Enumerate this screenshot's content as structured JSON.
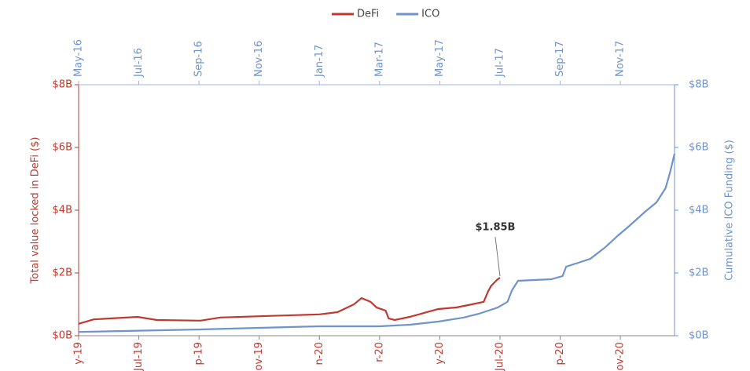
{
  "chart_data": {
    "type": "line",
    "ylabel": "Total value locked in DeFi ($)",
    "y2label": "Cumulative ICO Funding ($)",
    "xlim": [
      0,
      19.8
    ],
    "xticks": [
      {
        "value": 0,
        "label": "y-19"
      },
      {
        "value": 2,
        "label": "Jul-19"
      },
      {
        "value": 4,
        "label": "p-19"
      },
      {
        "value": 6,
        "label": "ov-19"
      },
      {
        "value": 8,
        "label": "n-20"
      },
      {
        "value": 10,
        "label": "r-20"
      },
      {
        "value": 12,
        "label": "y-20"
      },
      {
        "value": 14,
        "label": "Jul-20"
      },
      {
        "value": 16,
        "label": "p-20"
      },
      {
        "value": 18,
        "label": "ov-20"
      }
    ],
    "x2lim": [
      0,
      19.8
    ],
    "x2ticks": [
      {
        "value": 0,
        "label": "May-16"
      },
      {
        "value": 2,
        "label": "Jul-16"
      },
      {
        "value": 4,
        "label": "Sep-16"
      },
      {
        "value": 6,
        "label": "Nov-16"
      },
      {
        "value": 8,
        "label": "Jan-17"
      },
      {
        "value": 10,
        "label": "Mar-17"
      },
      {
        "value": 12,
        "label": "May-17"
      },
      {
        "value": 14,
        "label": "Jul-17"
      },
      {
        "value": 16,
        "label": "Sep-17"
      },
      {
        "value": 18,
        "label": "Nov-17"
      }
    ],
    "ylim": [
      0,
      8
    ],
    "yticks": [
      {
        "value": 0,
        "label": "$0B"
      },
      {
        "value": 2,
        "label": "$2B"
      },
      {
        "value": 4,
        "label": "$4B"
      },
      {
        "value": 6,
        "label": "$6B"
      },
      {
        "value": 8,
        "label": "$8B"
      }
    ],
    "y2lim": [
      0,
      8
    ],
    "y2ticks": [
      {
        "value": 0,
        "label": "$0B"
      },
      {
        "value": 2,
        "label": "$2B"
      },
      {
        "value": 4,
        "label": "$4B"
      },
      {
        "value": 6,
        "label": "$6B"
      },
      {
        "value": 8,
        "label": "$8B"
      }
    ],
    "series": [
      {
        "name": "DeFi",
        "color": "#c0392f",
        "xaxis": "x",
        "x": [
          0,
          0.5,
          1.96,
          2.6,
          4.05,
          4.7,
          6.0,
          8.0,
          8.6,
          9.15,
          9.4,
          9.7,
          9.9,
          10.2,
          10.3,
          10.5,
          11.0,
          11.95,
          12.55,
          13.07,
          13.46,
          13.6,
          13.7,
          13.9,
          14.0
        ],
        "values": [
          0.38,
          0.52,
          0.6,
          0.5,
          0.48,
          0.58,
          0.62,
          0.68,
          0.75,
          1.0,
          1.2,
          1.08,
          0.9,
          0.8,
          0.55,
          0.5,
          0.6,
          0.85,
          0.9,
          1.0,
          1.08,
          1.4,
          1.58,
          1.78,
          1.85
        ],
        "value_labels": [
          null,
          null,
          null,
          null,
          null,
          null,
          null,
          null,
          null,
          null,
          null,
          null,
          null,
          null,
          null,
          null,
          null,
          null,
          null,
          null,
          null,
          null,
          null,
          null,
          "$1.85B"
        ]
      },
      {
        "name": "ICO",
        "color": "#6f93cc",
        "xaxis": "x2",
        "axis": "y2",
        "x": [
          0,
          4.05,
          6.0,
          8.0,
          10.0,
          11.0,
          11.95,
          12.8,
          13.3,
          13.93,
          14.25,
          14.4,
          14.6,
          15.7,
          16.08,
          16.2,
          17.0,
          17.5,
          17.93,
          18.3,
          18.82,
          19.2,
          19.5,
          19.65,
          19.8
        ],
        "values": [
          0.12,
          0.2,
          0.25,
          0.3,
          0.3,
          0.35,
          0.45,
          0.58,
          0.7,
          0.9,
          1.08,
          1.45,
          1.75,
          1.8,
          1.9,
          2.2,
          2.45,
          2.82,
          3.2,
          3.5,
          3.95,
          4.25,
          4.7,
          5.2,
          5.8
        ]
      }
    ]
  }
}
